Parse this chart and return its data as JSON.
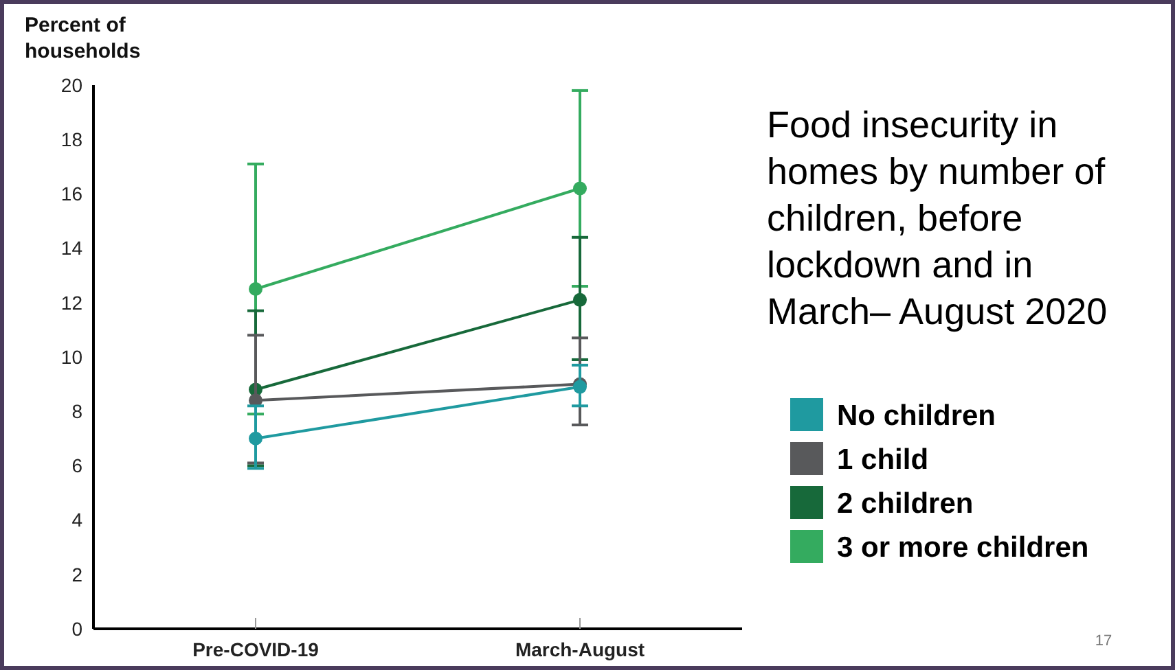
{
  "chart_data": {
    "type": "line",
    "title": "Food insecurity in homes by number of children, before lockdown and in March– August 2020",
    "ylabel": "Percent of households",
    "categories": [
      "Pre-COVID-19",
      "March-August"
    ],
    "ylim": [
      0,
      20
    ],
    "yticks": [
      0,
      2,
      4,
      6,
      8,
      10,
      12,
      14,
      16,
      18,
      20
    ],
    "grid": false,
    "legend": "right",
    "marker": "circle",
    "annotations": [
      "17"
    ],
    "series": [
      {
        "name": "No children",
        "color": "#1f9aa0",
        "values": [
          7.0,
          8.9
        ],
        "errors": [
          [
            5.9,
            8.2
          ],
          [
            8.2,
            9.7
          ]
        ]
      },
      {
        "name": "1 child",
        "color": "#58595b",
        "values": [
          8.4,
          9.0
        ],
        "errors": [
          [
            6.1,
            10.8
          ],
          [
            7.5,
            10.7
          ]
        ]
      },
      {
        "name": "2 children",
        "color": "#17693a",
        "values": [
          8.8,
          12.1
        ],
        "errors": [
          [
            6.0,
            11.7
          ],
          [
            9.9,
            14.4
          ]
        ]
      },
      {
        "name": "3 or more children",
        "color": "#34ab5f",
        "values": [
          12.5,
          16.2
        ],
        "errors": [
          [
            7.9,
            17.1
          ],
          [
            12.6,
            19.8
          ]
        ]
      }
    ]
  }
}
